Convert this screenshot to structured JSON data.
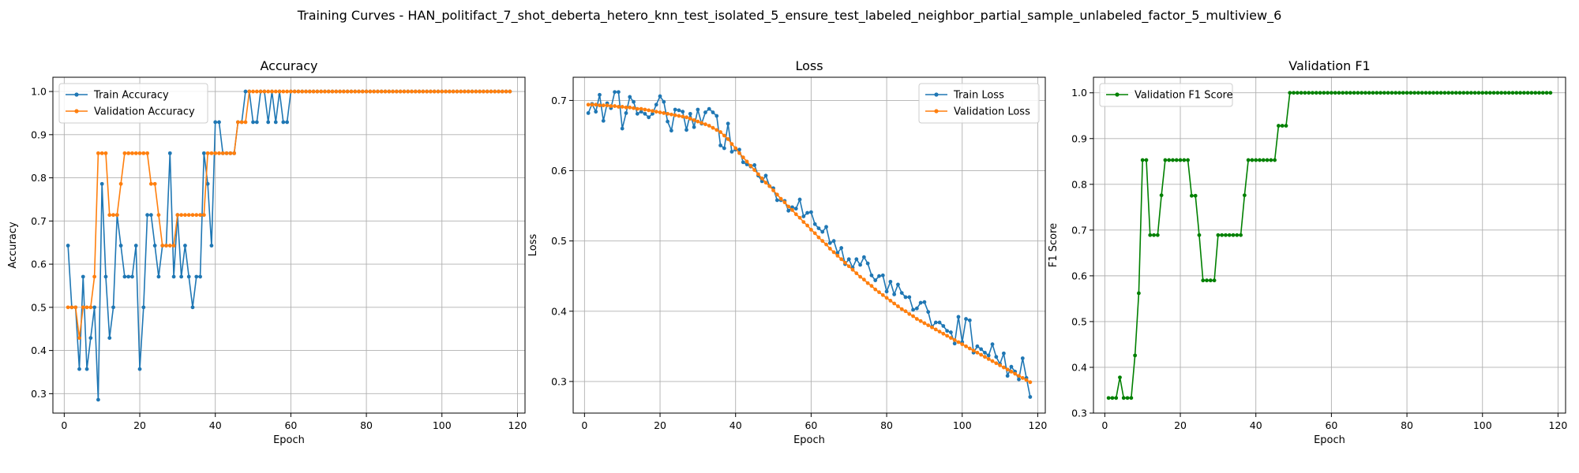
{
  "figure": {
    "suptitle": "Training Curves - HAN_politifact_7_shot_deberta_hetero_knn_test_isolated_5_ensure_test_labeled_neighbor_partial_sample_unlabeled_factor_5_multiview_6"
  },
  "colors": {
    "train": "#1f77b4",
    "validation": "#ff7f0e",
    "f1": "#008000",
    "grid": "#b0b0b0"
  },
  "chart_data": [
    {
      "type": "line",
      "title": "Accuracy",
      "xlabel": "Epoch",
      "ylabel": "Accuracy",
      "xlim": [
        -3,
        122
      ],
      "ylim": [
        0.255,
        1.033
      ],
      "xticks": [
        0,
        20,
        40,
        60,
        80,
        100,
        120
      ],
      "yticks": [
        0.3,
        0.4,
        0.5,
        0.6,
        0.7,
        0.8,
        0.9,
        1.0
      ],
      "ytick_labels": [
        "0.3",
        "0.4",
        "0.5",
        "0.6",
        "0.7",
        "0.8",
        "0.9",
        "1.0"
      ],
      "grid": true,
      "legend_position": "upper-left",
      "series": [
        {
          "name": "Train Accuracy",
          "color": "#1f77b4",
          "x_start": 1,
          "values": [
            0.643,
            0.5,
            0.5,
            0.357,
            0.571,
            0.357,
            0.429,
            0.5,
            0.286,
            0.786,
            0.571,
            0.429,
            0.5,
            0.714,
            0.643,
            0.571,
            0.571,
            0.571,
            0.643,
            0.357,
            0.5,
            0.714,
            0.714,
            0.643,
            0.571,
            0.643,
            0.643,
            0.857,
            0.571,
            0.714,
            0.571,
            0.643,
            0.571,
            0.5,
            0.571,
            0.571,
            0.857,
            0.786,
            0.643,
            0.929,
            0.929,
            0.857,
            0.857,
            0.857,
            0.857,
            0.929,
            0.929,
            1.0,
            1.0,
            0.929,
            0.929,
            1.0,
            1.0,
            0.929,
            1.0,
            0.929,
            1.0,
            0.929,
            0.929,
            1.0,
            1.0,
            1.0,
            1.0,
            1.0,
            1.0,
            1.0,
            1.0,
            1.0,
            1.0,
            1.0,
            1.0,
            1.0,
            1.0,
            1.0,
            1.0,
            1.0,
            1.0,
            1.0,
            1.0,
            1.0,
            1.0,
            1.0,
            1.0,
            1.0,
            1.0,
            1.0,
            1.0,
            1.0,
            1.0,
            1.0,
            1.0,
            1.0,
            1.0,
            1.0,
            1.0,
            1.0,
            1.0,
            1.0,
            1.0,
            1.0,
            1.0,
            1.0,
            1.0,
            1.0,
            1.0,
            1.0,
            1.0,
            1.0,
            1.0,
            1.0,
            1.0,
            1.0,
            1.0,
            1.0,
            1.0,
            1.0,
            1.0,
            1.0
          ]
        },
        {
          "name": "Validation Accuracy",
          "color": "#ff7f0e",
          "x_start": 1,
          "values": [
            0.5,
            0.5,
            0.5,
            0.429,
            0.5,
            0.5,
            0.5,
            0.571,
            0.857,
            0.857,
            0.857,
            0.714,
            0.714,
            0.714,
            0.786,
            0.857,
            0.857,
            0.857,
            0.857,
            0.857,
            0.857,
            0.857,
            0.786,
            0.786,
            0.714,
            0.643,
            0.643,
            0.643,
            0.643,
            0.714,
            0.714,
            0.714,
            0.714,
            0.714,
            0.714,
            0.714,
            0.714,
            0.857,
            0.857,
            0.857,
            0.857,
            0.857,
            0.857,
            0.857,
            0.857,
            0.929,
            0.929,
            0.929,
            1.0,
            1.0,
            1.0,
            1.0,
            1.0,
            1.0,
            1.0,
            1.0,
            1.0,
            1.0,
            1.0,
            1.0,
            1.0,
            1.0,
            1.0,
            1.0,
            1.0,
            1.0,
            1.0,
            1.0,
            1.0,
            1.0,
            1.0,
            1.0,
            1.0,
            1.0,
            1.0,
            1.0,
            1.0,
            1.0,
            1.0,
            1.0,
            1.0,
            1.0,
            1.0,
            1.0,
            1.0,
            1.0,
            1.0,
            1.0,
            1.0,
            1.0,
            1.0,
            1.0,
            1.0,
            1.0,
            1.0,
            1.0,
            1.0,
            1.0,
            1.0,
            1.0,
            1.0,
            1.0,
            1.0,
            1.0,
            1.0,
            1.0,
            1.0,
            1.0,
            1.0,
            1.0,
            1.0,
            1.0,
            1.0,
            1.0,
            1.0,
            1.0,
            1.0,
            1.0
          ]
        }
      ]
    },
    {
      "type": "line",
      "title": "Loss",
      "xlabel": "Epoch",
      "ylabel": "Loss",
      "xlim": [
        -3,
        122
      ],
      "ylim": [
        0.255,
        0.733
      ],
      "xticks": [
        0,
        20,
        40,
        60,
        80,
        100,
        120
      ],
      "yticks": [
        0.3,
        0.4,
        0.5,
        0.6,
        0.7
      ],
      "ytick_labels": [
        "0.3",
        "0.4",
        "0.5",
        "0.6",
        "0.7"
      ],
      "grid": true,
      "legend_position": "upper-right",
      "series": [
        {
          "name": "Train Loss",
          "color": "#1f77b4",
          "x_start": 1,
          "values": [
            0.682,
            0.695,
            0.684,
            0.708,
            0.671,
            0.696,
            0.689,
            0.712,
            0.712,
            0.66,
            0.682,
            0.705,
            0.698,
            0.681,
            0.684,
            0.681,
            0.676,
            0.681,
            0.694,
            0.706,
            0.698,
            0.67,
            0.657,
            0.687,
            0.686,
            0.684,
            0.658,
            0.681,
            0.662,
            0.687,
            0.667,
            0.683,
            0.688,
            0.683,
            0.678,
            0.636,
            0.632,
            0.667,
            0.627,
            0.63,
            0.63,
            0.612,
            0.609,
            0.606,
            0.608,
            0.593,
            0.585,
            0.593,
            0.578,
            0.575,
            0.558,
            0.558,
            0.557,
            0.543,
            0.548,
            0.546,
            0.559,
            0.535,
            0.54,
            0.541,
            0.524,
            0.518,
            0.513,
            0.52,
            0.497,
            0.5,
            0.483,
            0.49,
            0.467,
            0.474,
            0.462,
            0.474,
            0.466,
            0.477,
            0.468,
            0.451,
            0.444,
            0.45,
            0.451,
            0.428,
            0.442,
            0.424,
            0.438,
            0.426,
            0.42,
            0.42,
            0.402,
            0.404,
            0.412,
            0.413,
            0.399,
            0.378,
            0.384,
            0.384,
            0.379,
            0.372,
            0.37,
            0.354,
            0.392,
            0.356,
            0.389,
            0.387,
            0.341,
            0.35,
            0.346,
            0.341,
            0.337,
            0.353,
            0.335,
            0.325,
            0.34,
            0.308,
            0.321,
            0.314,
            0.303,
            0.333,
            0.305,
            0.278
          ]
        },
        {
          "name": "Validation Loss",
          "color": "#ff7f0e",
          "x_start": 1,
          "values": [
            0.694,
            0.694,
            0.694,
            0.693,
            0.693,
            0.693,
            0.692,
            0.692,
            0.691,
            0.691,
            0.69,
            0.69,
            0.689,
            0.688,
            0.688,
            0.687,
            0.686,
            0.685,
            0.684,
            0.683,
            0.682,
            0.681,
            0.68,
            0.679,
            0.678,
            0.677,
            0.676,
            0.674,
            0.672,
            0.67,
            0.668,
            0.666,
            0.664,
            0.661,
            0.658,
            0.655,
            0.65,
            0.645,
            0.638,
            0.632,
            0.625,
            0.619,
            0.613,
            0.607,
            0.601,
            0.595,
            0.589,
            0.583,
            0.578,
            0.572,
            0.566,
            0.56,
            0.555,
            0.549,
            0.544,
            0.538,
            0.533,
            0.527,
            0.522,
            0.516,
            0.511,
            0.505,
            0.5,
            0.495,
            0.489,
            0.484,
            0.479,
            0.474,
            0.469,
            0.464,
            0.459,
            0.454,
            0.449,
            0.445,
            0.44,
            0.436,
            0.431,
            0.427,
            0.423,
            0.419,
            0.415,
            0.411,
            0.407,
            0.403,
            0.4,
            0.396,
            0.393,
            0.389,
            0.386,
            0.383,
            0.38,
            0.377,
            0.374,
            0.371,
            0.368,
            0.365,
            0.362,
            0.359,
            0.356,
            0.353,
            0.35,
            0.347,
            0.344,
            0.341,
            0.338,
            0.335,
            0.332,
            0.329,
            0.326,
            0.323,
            0.32,
            0.317,
            0.314,
            0.311,
            0.308,
            0.305,
            0.302,
            0.299
          ]
        }
      ]
    },
    {
      "type": "line",
      "title": "Validation F1",
      "xlabel": "Epoch",
      "ylabel": "F1 Score",
      "xlim": [
        -3,
        122
      ],
      "ylim": [
        0.3,
        1.034
      ],
      "xticks": [
        0,
        20,
        40,
        60,
        80,
        100,
        120
      ],
      "yticks": [
        0.3,
        0.4,
        0.5,
        0.6,
        0.7,
        0.8,
        0.9,
        1.0
      ],
      "ytick_labels": [
        "0.3",
        "0.4",
        "0.5",
        "0.6",
        "0.7",
        "0.8",
        "0.9",
        "1.0"
      ],
      "grid": true,
      "legend_position": "upper-left",
      "series": [
        {
          "name": "Validation F1 Score",
          "color": "#008000",
          "x_start": 1,
          "values": [
            0.333,
            0.333,
            0.333,
            0.378,
            0.333,
            0.333,
            0.333,
            0.426,
            0.562,
            0.853,
            0.853,
            0.689,
            0.689,
            0.689,
            0.776,
            0.853,
            0.853,
            0.853,
            0.853,
            0.853,
            0.853,
            0.853,
            0.775,
            0.775,
            0.689,
            0.59,
            0.59,
            0.59,
            0.59,
            0.689,
            0.689,
            0.689,
            0.689,
            0.689,
            0.689,
            0.689,
            0.776,
            0.853,
            0.853,
            0.853,
            0.853,
            0.853,
            0.853,
            0.853,
            0.853,
            0.928,
            0.928,
            0.928,
            1.0,
            1.0,
            1.0,
            1.0,
            1.0,
            1.0,
            1.0,
            1.0,
            1.0,
            1.0,
            1.0,
            1.0,
            1.0,
            1.0,
            1.0,
            1.0,
            1.0,
            1.0,
            1.0,
            1.0,
            1.0,
            1.0,
            1.0,
            1.0,
            1.0,
            1.0,
            1.0,
            1.0,
            1.0,
            1.0,
            1.0,
            1.0,
            1.0,
            1.0,
            1.0,
            1.0,
            1.0,
            1.0,
            1.0,
            1.0,
            1.0,
            1.0,
            1.0,
            1.0,
            1.0,
            1.0,
            1.0,
            1.0,
            1.0,
            1.0,
            1.0,
            1.0,
            1.0,
            1.0,
            1.0,
            1.0,
            1.0,
            1.0,
            1.0,
            1.0,
            1.0,
            1.0,
            1.0,
            1.0,
            1.0,
            1.0,
            1.0,
            1.0,
            1.0,
            1.0
          ]
        }
      ]
    }
  ]
}
